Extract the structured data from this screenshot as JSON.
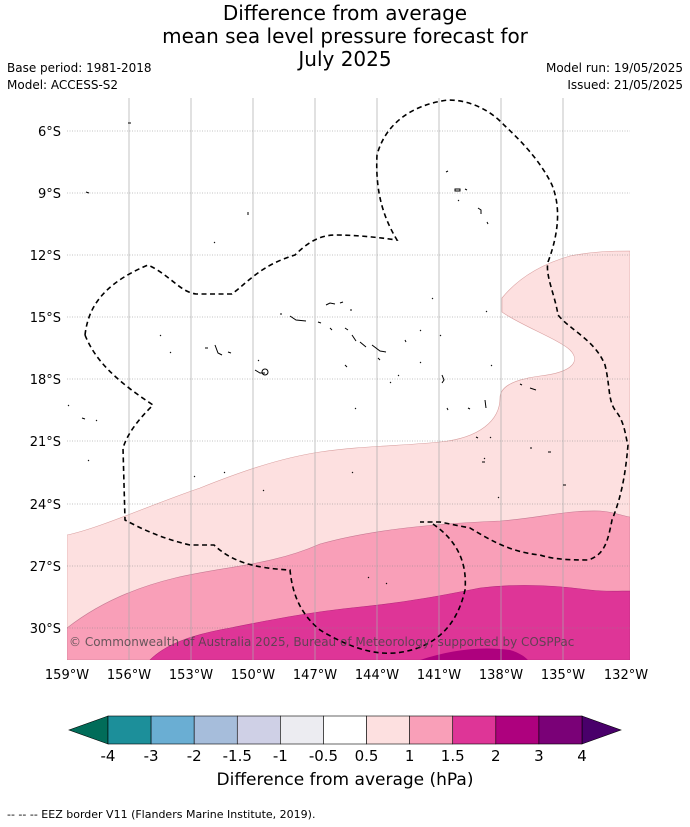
{
  "title": {
    "line1": "Difference from average",
    "line2": "mean sea level pressure forecast for",
    "line3": "July 2025"
  },
  "meta": {
    "base_period": "Base period: 1981-2018",
    "model": "Model: ACCESS-S2",
    "model_run": "Model run: 19/05/2025",
    "issued": "Issued: 21/05/2025"
  },
  "map": {
    "lat_ticks": [
      "6°S",
      "9°S",
      "12°S",
      "15°S",
      "18°S",
      "21°S",
      "24°S",
      "27°S",
      "30°S"
    ],
    "lon_ticks": [
      "159°W",
      "156°W",
      "153°W",
      "150°W",
      "147°W",
      "144°W",
      "141°W",
      "138°W",
      "135°W",
      "132°W"
    ],
    "copyright": "© Commonwealth of Australia 2025, Bureau of Meteorology, supported by COSPPac"
  },
  "colorbar": {
    "labels": [
      "-4",
      "-3",
      "-2",
      "-1.5",
      "-1",
      "-0.5",
      "0.5",
      "1",
      "1.5",
      "2",
      "3",
      "4"
    ],
    "colors": [
      "#1c8f9a",
      "#6aaed3",
      "#a6bddb",
      "#cfd0e6",
      "#ececf1",
      "#ffffff",
      "#fde0e0",
      "#f99fb8",
      "#de3597",
      "#ae017e",
      "#7a0177"
    ],
    "under_color": "#016c59",
    "over_color": "#49006a",
    "title": "Difference from average (hPa)"
  },
  "footer": "-- -- -- EEZ border V11 (Flanders Marine Institute, 2019)."
}
